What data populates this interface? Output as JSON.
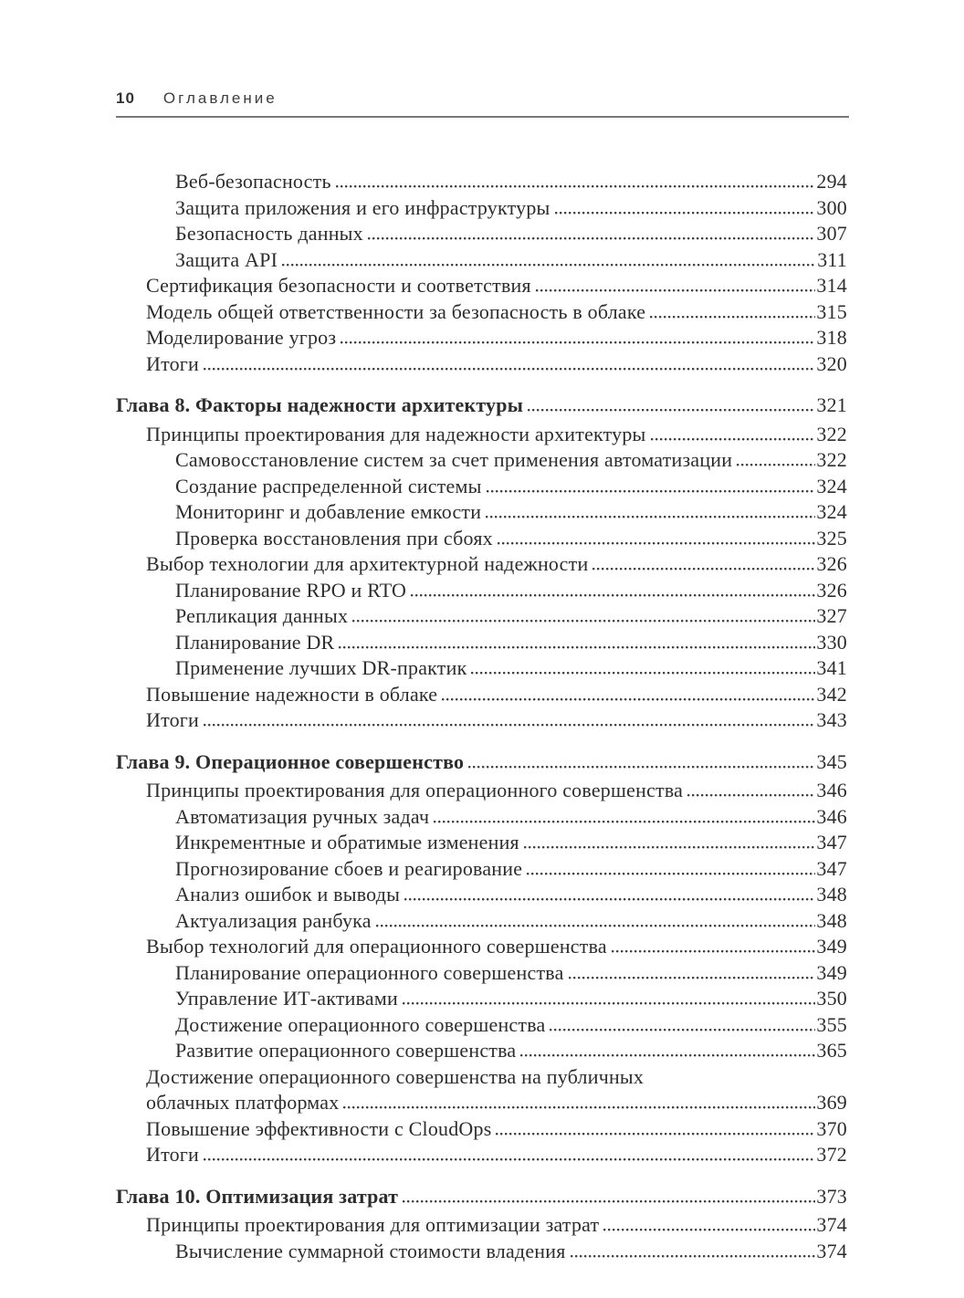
{
  "page": {
    "number": "10",
    "header_title": "Оглавление"
  },
  "colors": {
    "text": "#2d2d2d",
    "rule": "#787878",
    "leader_dots": "#3c3c3c"
  },
  "toc": {
    "entries": [
      {
        "level": 2,
        "title": "Веб-безопасность",
        "page": "294"
      },
      {
        "level": 2,
        "title": "Защита приложения и его инфраструктуры",
        "page": "300"
      },
      {
        "level": 2,
        "title": "Безопасность данных",
        "page": "307"
      },
      {
        "level": 2,
        "title": "Защита API",
        "page": "311"
      },
      {
        "level": 1,
        "title": "Сертификация безопасности и соответствия",
        "page": "314"
      },
      {
        "level": 1,
        "title": "Модель общей ответственности за безопасность в облаке",
        "page": "315"
      },
      {
        "level": 1,
        "title": "Моделирование угроз",
        "page": "318"
      },
      {
        "level": 1,
        "title": "Итоги",
        "page": "320"
      },
      {
        "level": 0,
        "chapter": true,
        "title": "Глава 8. Факторы надежности архитектуры",
        "page": "321"
      },
      {
        "level": 1,
        "title": "Принципы проектирования для надежности архитектуры",
        "page": "322"
      },
      {
        "level": 2,
        "title": "Самовосстановление систем за счет применения автоматизации",
        "page": "322"
      },
      {
        "level": 2,
        "title": "Создание распределенной системы",
        "page": "324"
      },
      {
        "level": 2,
        "title": "Мониторинг и добавление емкости",
        "page": "324"
      },
      {
        "level": 2,
        "title": "Проверка восстановления при сбоях",
        "page": "325"
      },
      {
        "level": 1,
        "title": "Выбор технологии для архитектурной надежности",
        "page": "326"
      },
      {
        "level": 2,
        "title": "Планирование RPO и RTO",
        "page": "326"
      },
      {
        "level": 2,
        "title": "Репликация данных",
        "page": "327"
      },
      {
        "level": 2,
        "title": "Планирование DR",
        "page": "330"
      },
      {
        "level": 2,
        "title": "Применение лучших DR-практик",
        "page": "341"
      },
      {
        "level": 1,
        "title": "Повышение надежности в облаке",
        "page": "342"
      },
      {
        "level": 1,
        "title": "Итоги",
        "page": "343"
      },
      {
        "level": 0,
        "chapter": true,
        "title": "Глава 9. Операционное совершенство",
        "page": "345"
      },
      {
        "level": 1,
        "title": "Принципы проектирования для операционного совершенства",
        "page": "346"
      },
      {
        "level": 2,
        "title": "Автоматизация ручных задач",
        "page": "346"
      },
      {
        "level": 2,
        "title": "Инкрементные и обратимые изменения",
        "page": "347"
      },
      {
        "level": 2,
        "title": "Прогнозирование сбоев и реагирование",
        "page": "347"
      },
      {
        "level": 2,
        "title": "Анализ ошибок и выводы",
        "page": "348"
      },
      {
        "level": 2,
        "title": "Актуализация ранбука",
        "page": "348"
      },
      {
        "level": 1,
        "title": "Выбор технологий для операционного совершенства",
        "page": "349"
      },
      {
        "level": 2,
        "title": "Планирование операционного совершенства",
        "page": "349"
      },
      {
        "level": 2,
        "title": "Управление ИТ-активами",
        "page": "350"
      },
      {
        "level": 2,
        "title": "Достижение операционного совершенства",
        "page": "355"
      },
      {
        "level": 2,
        "title": "Развитие операционного совершенства",
        "page": "365"
      },
      {
        "level": 1,
        "title": "Достижение операционного совершенства на публичных",
        "title_line2": "облачных платформах",
        "page": "369"
      },
      {
        "level": 1,
        "title": "Повышение эффективности с CloudOps",
        "page": "370"
      },
      {
        "level": 1,
        "title": "Итоги",
        "page": "372"
      },
      {
        "level": 0,
        "chapter": true,
        "title": "Глава 10. Оптимизация затрат",
        "page": "373"
      },
      {
        "level": 1,
        "title": "Принципы проектирования для оптимизации затрат",
        "page": "374"
      },
      {
        "level": 2,
        "title": "Вычисление суммарной стоимости владения",
        "page": "374"
      }
    ]
  }
}
